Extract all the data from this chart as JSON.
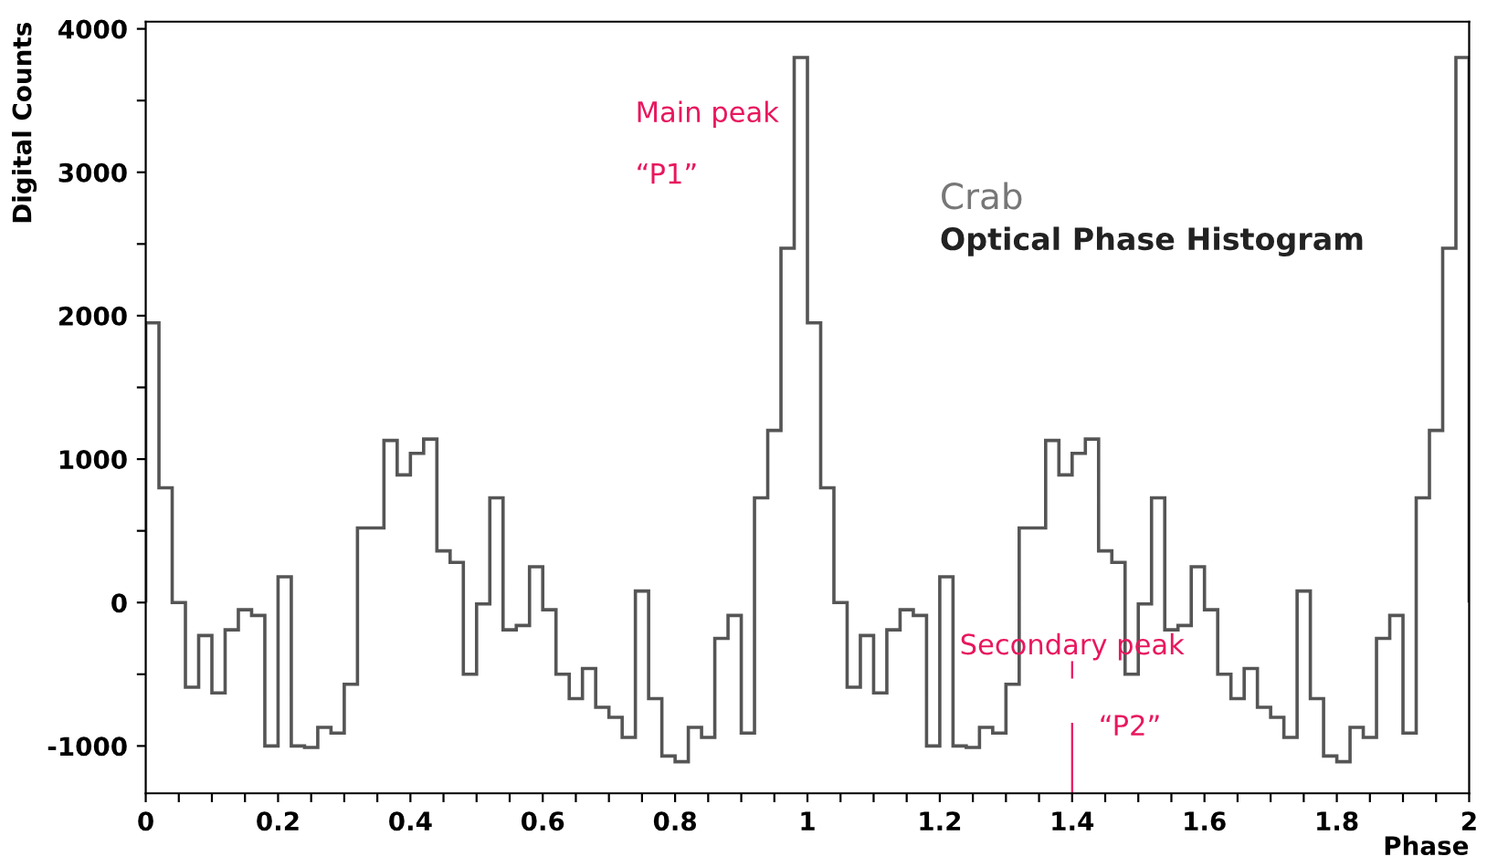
{
  "chart_data": {
    "type": "histogram",
    "ylabel": "Digital Counts",
    "xlabel": "Phase",
    "bins": [
      0,
      0.02,
      0.04,
      0.06,
      0.08,
      0.1,
      0.12,
      0.14,
      0.16,
      0.18,
      0.2,
      0.22,
      0.24,
      0.26,
      0.28,
      0.3,
      0.32,
      0.34,
      0.36,
      0.38,
      0.4,
      0.42,
      0.44,
      0.46,
      0.48,
      0.5,
      0.52,
      0.54,
      0.56,
      0.58,
      0.6,
      0.62,
      0.64,
      0.66,
      0.68,
      0.7,
      0.72,
      0.74,
      0.76,
      0.78,
      0.8,
      0.82,
      0.84,
      0.86,
      0.88,
      0.9,
      0.92,
      0.94,
      0.96,
      0.98,
      1.0,
      1.02,
      1.04,
      1.06,
      1.08,
      1.1,
      1.12,
      1.14,
      1.16,
      1.18,
      1.2,
      1.22,
      1.24,
      1.26,
      1.28,
      1.3,
      1.32,
      1.34,
      1.36,
      1.38,
      1.4,
      1.42,
      1.44,
      1.46,
      1.48,
      1.5,
      1.52,
      1.54,
      1.56,
      1.58,
      1.6,
      1.62,
      1.64,
      1.66,
      1.68,
      1.7,
      1.72,
      1.74,
      1.76,
      1.78,
      1.8,
      1.82,
      1.84,
      1.86,
      1.88,
      1.9,
      1.92,
      1.94,
      1.96,
      1.98,
      2.0
    ],
    "values": [
      1950,
      800,
      0,
      -590,
      -230,
      -630,
      -190,
      -50,
      -90,
      -1000,
      180,
      -1000,
      -1010,
      -870,
      -910,
      -570,
      520,
      520,
      1130,
      890,
      1040,
      1140,
      360,
      280,
      -500,
      -10,
      730,
      -190,
      -160,
      250,
      -50,
      -500,
      -670,
      -460,
      -730,
      -800,
      -940,
      80,
      -670,
      -1070,
      -1110,
      -870,
      -940,
      -250,
      -90,
      -910,
      730,
      1200,
      2470,
      3800,
      1950,
      800,
      0,
      -590,
      -230,
      -630,
      -190,
      -50,
      -90,
      -1000,
      180,
      -1000,
      -1010,
      -870,
      -910,
      -570,
      520,
      520,
      1130,
      890,
      1040,
      1140,
      360,
      280,
      -500,
      -10,
      730,
      -190,
      -160,
      250,
      -50,
      -500,
      -670,
      -460,
      -730,
      -800,
      -940,
      80,
      -670,
      -1070,
      -1110,
      -870,
      -940,
      -250,
      -90,
      -910,
      730,
      1200,
      2470,
      3800
    ],
    "color": "#555555",
    "xlim": [
      0,
      2
    ],
    "ylim": [
      -1330,
      4050
    ],
    "xticks": [
      0,
      {
        "value": 0.05,
        "label": null
      },
      {
        "value": 0.1,
        "label": null
      },
      {
        "value": 0.15,
        "label": null
      },
      0.2,
      {
        "value": 0.25,
        "label": null
      },
      {
        "value": 0.3,
        "label": null
      },
      {
        "value": 0.35,
        "label": null
      },
      0.4,
      {
        "value": 0.45,
        "label": null
      },
      {
        "value": 0.5,
        "label": null
      },
      {
        "value": 0.55,
        "label": null
      },
      0.6,
      {
        "value": 0.65,
        "label": null
      },
      {
        "value": 0.7,
        "label": null
      },
      {
        "value": 0.75,
        "label": null
      },
      0.8,
      {
        "value": 0.85,
        "label": null
      },
      {
        "value": 0.9,
        "label": null
      },
      {
        "value": 0.95,
        "label": null
      },
      1,
      {
        "value": 1.05,
        "label": null
      },
      {
        "value": 1.1,
        "label": null
      },
      {
        "value": 1.15,
        "label": null
      },
      1.2,
      {
        "value": 1.25,
        "label": null
      },
      {
        "value": 1.3,
        "label": null
      },
      {
        "value": 1.35,
        "label": null
      },
      1.4,
      {
        "value": 1.45,
        "label": null
      },
      {
        "value": 1.5,
        "label": null
      },
      {
        "value": 1.55,
        "label": null
      },
      1.6,
      {
        "value": 1.65,
        "label": null
      },
      {
        "value": 1.7,
        "label": null
      },
      {
        "value": 1.75,
        "label": null
      },
      1.8,
      {
        "value": 1.85,
        "label": null
      },
      {
        "value": 1.9,
        "label": null
      },
      {
        "value": 1.95,
        "label": null
      },
      2
    ],
    "yticks": [
      -1000,
      {
        "value": -500,
        "label": null
      },
      0,
      {
        "value": 500,
        "label": null
      },
      1000,
      {
        "value": 1500,
        "label": null
      },
      2000,
      {
        "value": 2500,
        "label": null
      },
      3000,
      {
        "value": 3500,
        "label": null
      },
      4000
    ],
    "ref_lines": [
      {
        "axis": "x",
        "value": 1.4,
        "label": null,
        "color": "#e8175d"
      }
    ],
    "annotations": [
      "Main peak",
      "“P1”",
      "Crab",
      "Optical Phase Histogram",
      "Secondary peak",
      "“P2”"
    ]
  }
}
